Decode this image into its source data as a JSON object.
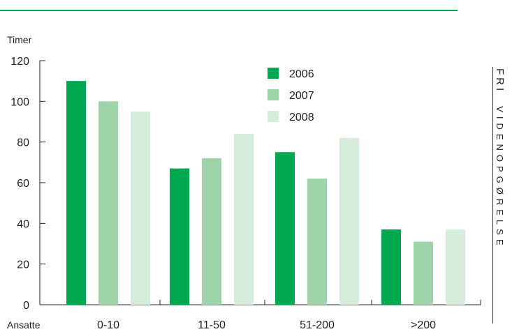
{
  "chart_data": {
    "type": "bar",
    "ylabel": "Timer",
    "xlabel": "Ansatte",
    "categories": [
      "0-10",
      "11-50",
      "51-200",
      ">200"
    ],
    "ylim": [
      0,
      120
    ],
    "yticks": [
      0,
      20,
      40,
      60,
      80,
      100,
      120
    ],
    "series": [
      {
        "name": "2006",
        "color": "#00a94f",
        "values": [
          110,
          67,
          75,
          37
        ]
      },
      {
        "name": "2007",
        "color": "#9fd3a9",
        "values": [
          100,
          72,
          62,
          31
        ]
      },
      {
        "name": "2008",
        "color": "#d6ecdc",
        "values": [
          95,
          84,
          82,
          37
        ]
      }
    ],
    "legend_position": "top-center",
    "grid": false
  },
  "side_title": {
    "strong": "FRI",
    "light": "VIDENOPGØRELSE"
  }
}
